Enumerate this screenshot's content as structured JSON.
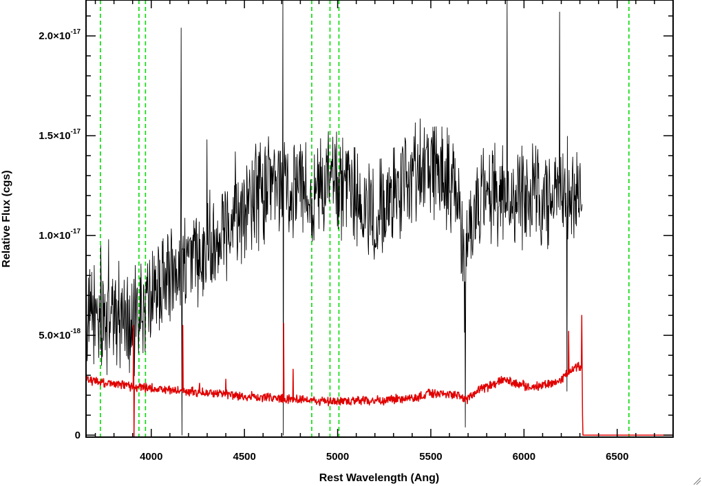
{
  "chart_data": {
    "type": "line",
    "xlabel": "Rest Wavelength (Ang)",
    "ylabel": "Relative Flux (cgs)",
    "xlim": [
      3650,
      6800
    ],
    "ylim": [
      -1e-19,
      2.18e-17
    ],
    "x_ticks": [
      4000,
      4500,
      5000,
      5500,
      6000,
      6500
    ],
    "x_tick_labels": [
      "4000",
      "4500",
      "5000",
      "5500",
      "6000",
      "6500"
    ],
    "y_ticks": [
      0,
      5e-18,
      1e-17,
      1.5e-17,
      2e-17
    ],
    "y_tick_labels": [
      {
        "mantissa": "0",
        "exponent": ""
      },
      {
        "mantissa": "5.0×10",
        "exponent": "-18"
      },
      {
        "mantissa": "1.0×10",
        "exponent": "-17"
      },
      {
        "mantissa": "1.5×10",
        "exponent": "-17"
      },
      {
        "mantissa": "2.0×10",
        "exponent": "-17"
      }
    ],
    "reference_lines": [
      3727,
      3934,
      3969,
      4861,
      4959,
      5007,
      6563
    ],
    "grid": false,
    "series": [
      {
        "color": "#000000",
        "noise_amplitude": 2.2e-18,
        "spikes": [
          [
            4160,
            2.04e-17
          ],
          [
            4165,
            0.0
          ],
          [
            4705,
            2.18e-17
          ],
          [
            4708,
            0.0
          ],
          [
            5910,
            2.18e-17
          ],
          [
            6190,
            2.12e-17
          ],
          [
            6230,
            2.2e-18
          ],
          [
            5685,
            4e-19
          ],
          [
            3730,
            9.5e-18
          ],
          [
            3770,
            9.8e-18
          ],
          [
            4300,
            1.48e-17
          ],
          [
            4450,
            1.42e-17
          ]
        ],
        "x": [
          3650,
          3700,
          3750,
          3800,
          3850,
          3900,
          3950,
          4000,
          4050,
          4100,
          4150,
          4200,
          4250,
          4300,
          4350,
          4400,
          4450,
          4500,
          4550,
          4600,
          4650,
          4700,
          4750,
          4800,
          4850,
          4900,
          4950,
          5000,
          5050,
          5100,
          5150,
          5200,
          5250,
          5300,
          5350,
          5400,
          5450,
          5500,
          5550,
          5600,
          5650,
          5680,
          5700,
          5750,
          5800,
          5850,
          5900,
          5950,
          6000,
          6050,
          6100,
          6150,
          6200,
          6250,
          6300,
          6312
        ],
        "y": [
          5.5e-18,
          6e-18,
          5.8e-18,
          6e-18,
          6.2e-18,
          5.5e-18,
          6.2e-18,
          7e-18,
          7.5e-18,
          8e-18,
          8.5e-18,
          8.8e-18,
          9e-18,
          9.5e-18,
          1e-17,
          1.05e-17,
          1.12e-17,
          1.15e-17,
          1.2e-17,
          1.22e-17,
          1.25e-17,
          1.25e-17,
          1.22e-17,
          1.28e-17,
          1.25e-17,
          1.2e-17,
          1.28e-17,
          1.25e-17,
          1.18e-17,
          1.2e-17,
          1.1e-17,
          1.08e-17,
          1.15e-17,
          1.2e-17,
          1.25e-17,
          1.3e-17,
          1.35e-17,
          1.33e-17,
          1.3e-17,
          1.28e-17,
          1.2e-17,
          7e-18,
          1e-17,
          1.2e-17,
          1.25e-17,
          1.2e-17,
          1.15e-17,
          1.2e-17,
          1.18e-17,
          1.22e-17,
          1.15e-17,
          1.2e-17,
          1.25e-17,
          1.18e-17,
          1.2e-17,
          1e-17
        ]
      },
      {
        "color": "#e00000",
        "noise_amplitude": 2e-19,
        "spikes": [
          [
            3905,
            5.5e-18
          ],
          [
            3908,
            -1.5e-18
          ],
          [
            4170,
            5.5e-18
          ],
          [
            4260,
            2.6e-18
          ],
          [
            4400,
            2.8e-18
          ],
          [
            4710,
            5.6e-18
          ],
          [
            4760,
            3.3e-18
          ],
          [
            6240,
            5.2e-18
          ],
          [
            6310,
            6e-18
          ]
        ],
        "x": [
          3650,
          3750,
          3850,
          3950,
          4050,
          4150,
          4250,
          4350,
          4450,
          4550,
          4650,
          4750,
          4850,
          4950,
          5050,
          5150,
          5250,
          5350,
          5450,
          5550,
          5650,
          5700,
          5750,
          5800,
          5850,
          5900,
          5950,
          6000,
          6050,
          6100,
          6150,
          6200,
          6250,
          6300,
          6312,
          6315,
          6400,
          6500,
          6600,
          6700,
          6800
        ],
        "y": [
          2.8e-18,
          2.6e-18,
          2.5e-18,
          2.4e-18,
          2.3e-18,
          2.2e-18,
          2.15e-18,
          2.1e-18,
          2e-18,
          1.9e-18,
          1.85e-18,
          1.8e-18,
          1.75e-18,
          1.7e-18,
          1.7e-18,
          1.75e-18,
          1.75e-18,
          1.8e-18,
          2e-18,
          2.1e-18,
          2e-18,
          1.8e-18,
          2.2e-18,
          2.4e-18,
          2.6e-18,
          2.8e-18,
          2.6e-18,
          2.5e-18,
          2.4e-18,
          2.5e-18,
          2.6e-18,
          2.8e-18,
          3.2e-18,
          3.5e-18,
          3.2e-18,
          0,
          0,
          0,
          0,
          0,
          0
        ]
      }
    ]
  }
}
